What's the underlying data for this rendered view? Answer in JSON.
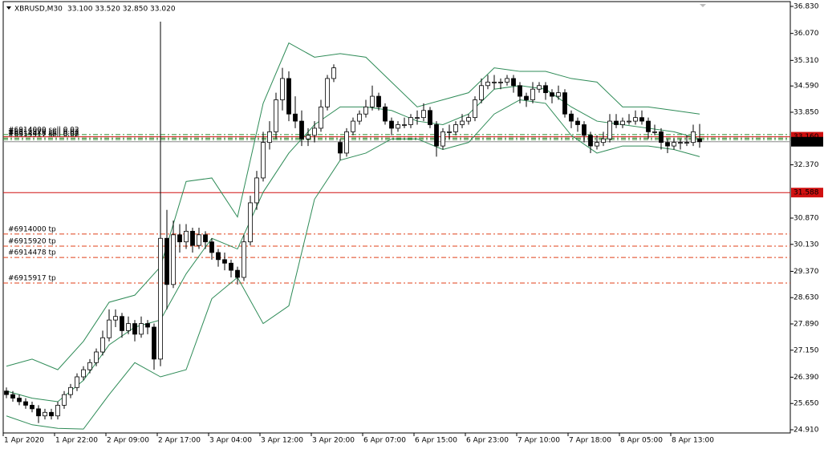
{
  "chart_data": {
    "type": "candlestick",
    "symbol": "XBRUSD,M30",
    "header_ohlc": "33.100 33.520 32.850 33.020",
    "categories": [
      "1 Apr 2020",
      null,
      null,
      null,
      null,
      null,
      null,
      null,
      "1 Apr 22:00",
      null,
      null,
      null,
      null,
      null,
      null,
      null,
      "2 Apr 09:00",
      null,
      null,
      null,
      null,
      null,
      null,
      null,
      "2 Apr 17:00",
      null,
      null,
      null,
      null,
      null,
      null,
      null,
      "3 Apr 04:00",
      null,
      null,
      null,
      null,
      null,
      null,
      null,
      "3 Apr 12:00",
      null,
      null,
      null,
      null,
      null,
      null,
      null,
      "3 Apr 20:00",
      null,
      null,
      null,
      null,
      null,
      null,
      null,
      "6 Apr 07:00",
      null,
      null,
      null,
      null,
      null,
      null,
      null,
      "6 Apr 15:00",
      null,
      null,
      null,
      null,
      null,
      null,
      null,
      "6 Apr 23:00",
      null,
      null,
      null,
      null,
      null,
      null,
      null,
      "7 Apr 10:00",
      null,
      null,
      null,
      null,
      null,
      null,
      null,
      "7 Apr 18:00",
      null,
      null,
      null,
      null,
      null,
      null,
      null,
      "8 Apr 05:00",
      null,
      null,
      null,
      null,
      null,
      null,
      null,
      "8 Apr 13:00",
      null,
      null,
      null,
      null
    ],
    "ohlc": [
      [
        26.0,
        26.1,
        25.8,
        25.9
      ],
      [
        25.9,
        26.0,
        25.7,
        25.8
      ],
      [
        25.8,
        25.9,
        25.6,
        25.7
      ],
      [
        25.7,
        25.8,
        25.5,
        25.6
      ],
      [
        25.6,
        25.7,
        25.4,
        25.5
      ],
      [
        25.5,
        25.6,
        25.1,
        25.3
      ],
      [
        25.3,
        25.5,
        25.2,
        25.4
      ],
      [
        25.4,
        25.5,
        25.2,
        25.3
      ],
      [
        25.3,
        25.7,
        25.2,
        25.6
      ],
      [
        25.6,
        26.0,
        25.5,
        25.9
      ],
      [
        25.9,
        26.2,
        25.8,
        26.1
      ],
      [
        26.1,
        26.5,
        26.0,
        26.4
      ],
      [
        26.4,
        26.7,
        26.3,
        26.6
      ],
      [
        26.6,
        26.9,
        26.5,
        26.8
      ],
      [
        26.8,
        27.2,
        26.7,
        27.1
      ],
      [
        27.1,
        27.7,
        27.0,
        27.5
      ],
      [
        27.5,
        28.3,
        27.4,
        28.0
      ],
      [
        28.0,
        28.3,
        27.8,
        28.1
      ],
      [
        28.1,
        28.2,
        27.5,
        27.7
      ],
      [
        27.7,
        28.1,
        27.6,
        27.9
      ],
      [
        27.9,
        28.0,
        27.4,
        27.6
      ],
      [
        27.6,
        28.1,
        27.5,
        27.9
      ],
      [
        27.9,
        28.0,
        27.6,
        27.8
      ],
      [
        27.8,
        27.9,
        26.6,
        26.9
      ],
      [
        26.9,
        36.4,
        26.7,
        30.3
      ],
      [
        30.3,
        31.1,
        28.3,
        29.0
      ],
      [
        29.0,
        30.8,
        28.9,
        30.4
      ],
      [
        30.4,
        30.7,
        29.9,
        30.2
      ],
      [
        30.2,
        30.7,
        30.0,
        30.5
      ],
      [
        30.5,
        30.6,
        29.9,
        30.1
      ],
      [
        30.1,
        30.6,
        30.0,
        30.4
      ],
      [
        30.4,
        30.5,
        30.0,
        30.2
      ],
      [
        30.2,
        30.3,
        29.7,
        29.9
      ],
      [
        29.9,
        30.0,
        29.5,
        29.7
      ],
      [
        29.7,
        29.9,
        29.4,
        29.6
      ],
      [
        29.6,
        29.7,
        29.2,
        29.4
      ],
      [
        29.4,
        29.5,
        29.0,
        29.2
      ],
      [
        29.2,
        30.4,
        29.1,
        30.2
      ],
      [
        30.2,
        31.5,
        30.1,
        31.3
      ],
      [
        31.3,
        32.2,
        31.1,
        32.0
      ],
      [
        32.0,
        33.3,
        31.9,
        33.0
      ],
      [
        33.0,
        33.6,
        32.8,
        33.3
      ],
      [
        33.3,
        34.4,
        33.1,
        34.2
      ],
      [
        34.2,
        35.1,
        33.9,
        34.8
      ],
      [
        34.8,
        35.0,
        33.6,
        33.8
      ],
      [
        33.8,
        34.3,
        33.4,
        33.6
      ],
      [
        33.6,
        33.9,
        32.9,
        33.1
      ],
      [
        33.1,
        33.4,
        32.9,
        33.2
      ],
      [
        33.2,
        33.6,
        33.0,
        33.4
      ],
      [
        33.4,
        34.2,
        33.3,
        34.0
      ],
      [
        34.0,
        34.9,
        33.9,
        34.8
      ],
      [
        34.8,
        35.2,
        34.7,
        35.1
      ],
      [
        33.0,
        33.1,
        32.5,
        32.7
      ],
      [
        32.7,
        33.4,
        32.6,
        33.3
      ],
      [
        33.3,
        33.7,
        33.2,
        33.6
      ],
      [
        33.6,
        33.9,
        33.5,
        33.8
      ],
      [
        33.8,
        34.2,
        33.7,
        34.0
      ],
      [
        34.0,
        34.6,
        33.9,
        34.3
      ],
      [
        34.3,
        34.4,
        33.9,
        34.0
      ],
      [
        34.0,
        34.1,
        33.5,
        33.6
      ],
      [
        33.6,
        33.7,
        33.2,
        33.4
      ],
      [
        33.4,
        33.6,
        33.3,
        33.5
      ],
      [
        33.5,
        33.7,
        33.4,
        33.5
      ],
      [
        33.5,
        33.8,
        33.4,
        33.7
      ],
      [
        33.7,
        33.9,
        33.5,
        33.7
      ],
      [
        33.7,
        34.1,
        33.6,
        33.9
      ],
      [
        33.9,
        34.0,
        33.4,
        33.5
      ],
      [
        33.5,
        33.6,
        32.6,
        32.9
      ],
      [
        32.9,
        33.4,
        32.8,
        33.3
      ],
      [
        33.3,
        33.5,
        33.1,
        33.3
      ],
      [
        33.3,
        33.6,
        33.2,
        33.5
      ],
      [
        33.5,
        33.8,
        33.4,
        33.6
      ],
      [
        33.6,
        33.8,
        33.5,
        33.7
      ],
      [
        33.7,
        34.3,
        33.6,
        34.2
      ],
      [
        34.2,
        34.8,
        34.1,
        34.6
      ],
      [
        34.6,
        34.9,
        34.5,
        34.7
      ],
      [
        34.7,
        34.9,
        34.5,
        34.7
      ],
      [
        34.7,
        34.8,
        34.5,
        34.7
      ],
      [
        34.7,
        34.9,
        34.6,
        34.8
      ],
      [
        34.8,
        34.9,
        34.4,
        34.6
      ],
      [
        34.6,
        34.7,
        34.1,
        34.3
      ],
      [
        34.3,
        34.4,
        34.0,
        34.2
      ],
      [
        34.2,
        34.7,
        34.1,
        34.5
      ],
      [
        34.5,
        34.7,
        34.4,
        34.6
      ],
      [
        34.6,
        34.7,
        34.2,
        34.4
      ],
      [
        34.4,
        34.5,
        34.1,
        34.3
      ],
      [
        34.3,
        34.6,
        34.2,
        34.4
      ],
      [
        34.4,
        34.5,
        33.7,
        33.8
      ],
      [
        33.8,
        33.9,
        33.4,
        33.6
      ],
      [
        33.6,
        33.7,
        33.3,
        33.5
      ],
      [
        33.5,
        33.6,
        33.0,
        33.2
      ],
      [
        33.2,
        33.3,
        32.7,
        32.9
      ],
      [
        32.9,
        33.2,
        32.8,
        33.0
      ],
      [
        33.0,
        33.3,
        32.9,
        33.1
      ],
      [
        33.1,
        33.8,
        33.0,
        33.6
      ],
      [
        33.6,
        33.8,
        33.4,
        33.5
      ],
      [
        33.5,
        33.7,
        33.4,
        33.6
      ],
      [
        33.6,
        33.8,
        33.5,
        33.6
      ],
      [
        33.6,
        33.9,
        33.5,
        33.7
      ],
      [
        33.7,
        33.9,
        33.5,
        33.6
      ],
      [
        33.6,
        33.7,
        33.1,
        33.3
      ],
      [
        33.3,
        33.5,
        33.2,
        33.3
      ],
      [
        33.3,
        33.4,
        32.8,
        33.0
      ],
      [
        33.0,
        33.1,
        32.7,
        32.9
      ],
      [
        32.9,
        33.1,
        32.8,
        33.0
      ],
      [
        33.0,
        33.1,
        32.8,
        33.0
      ],
      [
        33.0,
        33.2,
        32.9,
        33.0
      ],
      [
        33.0,
        33.5,
        32.9,
        33.3
      ],
      [
        33.1,
        33.52,
        32.85,
        33.02
      ]
    ],
    "bands": {
      "color": "#2e8b57",
      "x": [
        0,
        4,
        8,
        12,
        16,
        20,
        24,
        28,
        32,
        36,
        40,
        44,
        48,
        52,
        56,
        60,
        64,
        68,
        72,
        76,
        80,
        84,
        88,
        92,
        96,
        100,
        104,
        108
      ],
      "upper": [
        26.7,
        26.9,
        26.6,
        27.4,
        28.5,
        28.7,
        29.5,
        31.9,
        32.0,
        30.9,
        34.1,
        35.8,
        35.4,
        35.5,
        35.4,
        34.7,
        34.0,
        34.2,
        34.4,
        35.1,
        35.0,
        35.0,
        34.8,
        34.7,
        34.0,
        34.0,
        33.9,
        33.8
      ],
      "middle": [
        26.0,
        25.8,
        25.7,
        26.3,
        27.3,
        27.8,
        28.0,
        29.3,
        30.3,
        30.0,
        31.6,
        32.7,
        33.5,
        34.0,
        34.0,
        33.9,
        33.6,
        33.5,
        33.8,
        34.5,
        34.6,
        34.5,
        34.0,
        33.6,
        33.5,
        33.4,
        33.3,
        33.1
      ],
      "lower": [
        25.3,
        25.05,
        24.95,
        24.93,
        25.9,
        26.8,
        26.4,
        26.6,
        28.6,
        29.2,
        27.9,
        28.4,
        31.4,
        32.5,
        32.7,
        33.1,
        33.1,
        32.8,
        33.0,
        33.8,
        34.2,
        34.1,
        33.2,
        32.7,
        32.9,
        32.9,
        32.8,
        32.6
      ]
    },
    "orders": [
      {
        "label": "#6914000 sell 0.02",
        "value": 33.22,
        "color": "#2e8b2e"
      },
      {
        "label": "#6915920 sell 0.02",
        "value": 33.16,
        "color": "#2e8b2e"
      },
      {
        "label": "#6914478 sell 0.02",
        "value": 33.12,
        "color": "#2e8b2e"
      },
      {
        "label": "#6915917 sell 0.02",
        "value": 33.08,
        "color": "#2e8b2e"
      },
      {
        "label": "#6914000 tp",
        "value": 30.42,
        "color": "#e0401a"
      },
      {
        "label": "#6915920 tp",
        "value": 30.08,
        "color": "#e0401a"
      },
      {
        "label": "#6914478 tp",
        "value": 29.76,
        "color": "#e0401a"
      },
      {
        "label": "#6915917 tp",
        "value": 29.04,
        "color": "#e0401a"
      }
    ],
    "levels": [
      {
        "value": 31.588,
        "label": "31.588",
        "color": "#d01010"
      },
      {
        "value": 33.16,
        "label": "33.160",
        "color": "#d01010"
      },
      {
        "value": 33.02,
        "label": "33.020",
        "color": "#000000"
      }
    ],
    "ylim": [
      24.91,
      36.83
    ],
    "yticks": [
      {
        "value": 24.91,
        "label": "24.910"
      },
      {
        "value": 25.65,
        "label": "25.650"
      },
      {
        "value": 26.39,
        "label": "26.390"
      },
      {
        "value": 27.15,
        "label": "27.150"
      },
      {
        "value": 27.89,
        "label": "27.890"
      },
      {
        "value": 28.63,
        "label": "28.630"
      },
      {
        "value": 29.37,
        "label": "29.370"
      },
      {
        "value": 30.13,
        "label": "30.130"
      },
      {
        "value": 30.87,
        "label": "30.870"
      },
      {
        "value": 32.37,
        "label": "32.370"
      },
      {
        "value": 33.85,
        "label": "33.850"
      },
      {
        "value": 34.59,
        "label": "34.590"
      },
      {
        "value": 35.31,
        "label": "35.310"
      },
      {
        "value": 36.07,
        "label": "36.070"
      },
      {
        "value": 36.83,
        "label": "36.830"
      }
    ]
  }
}
